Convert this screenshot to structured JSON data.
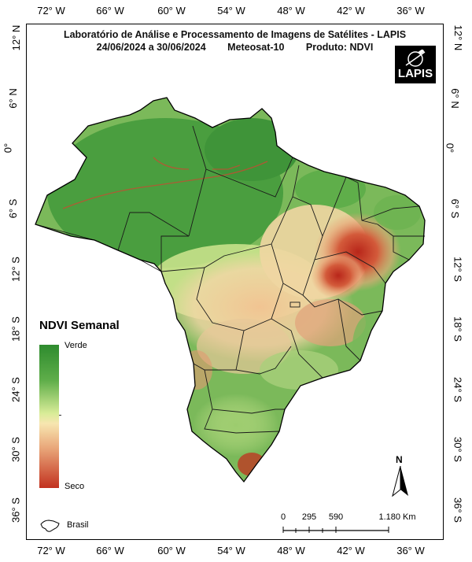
{
  "header": {
    "line1": "Laboratório de Análise e Processamento de Imagens de Satélites - LAPIS",
    "date_range": "24/06/2024  a  30/06/2024",
    "satellite": "Meteosat-10",
    "product": "Produto: NDVI"
  },
  "logo": {
    "text": "LAPIS"
  },
  "axes": {
    "longitudes": [
      "72° W",
      "66° W",
      "60° W",
      "54° W",
      "48° W",
      "42° W",
      "36° W"
    ],
    "latitudes": [
      "12° N",
      "6° N",
      "0°",
      "6° S",
      "12° S",
      "18° S",
      "24° S",
      "30° S",
      "36° S"
    ]
  },
  "legend": {
    "title": "NDVI Semanal",
    "top_label": "Verde",
    "bottom_label": "Seco",
    "colors": [
      "#2e8b2e",
      "#5fae4a",
      "#d9ec98",
      "#f7e6b0",
      "#e9a77a",
      "#c2311f"
    ]
  },
  "inset": {
    "label": "Brasil"
  },
  "north_arrow": {
    "label": "N"
  },
  "scale_bar": {
    "labels": [
      "0",
      "295",
      "590",
      "1.180 Km"
    ]
  }
}
